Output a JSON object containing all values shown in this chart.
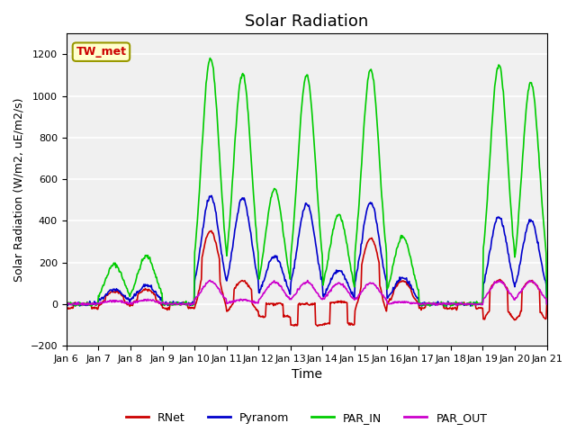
{
  "title": "Solar Radiation",
  "ylabel": "Solar Radiation (W/m2, uE/m2/s)",
  "xlabel": "Time",
  "ylim": [
    -200,
    1300
  ],
  "yticks": [
    -200,
    0,
    200,
    400,
    600,
    800,
    1000,
    1200
  ],
  "site_label": "TW_met",
  "background_color": "#f0f0f0",
  "legend_entries": [
    "RNet",
    "Pyranom",
    "PAR_IN",
    "PAR_OUT"
  ],
  "line_colors": [
    "#cc0000",
    "#0000cc",
    "#00cc00",
    "#cc00cc"
  ],
  "line_width": 1.2,
  "x_tick_labels": [
    "Jan 6",
    "Jan 7",
    "Jan 8",
    "Jan 9",
    "Jan 10",
    "Jan 11",
    "Jan 12",
    "Jan 13",
    "Jan 14",
    "Jan 15",
    "Jan 16",
    "Jan 17",
    "Jan 18",
    "Jan 19",
    "Jan 20",
    "Jan 21"
  ],
  "n_days": 15,
  "pts_per_day": 48
}
